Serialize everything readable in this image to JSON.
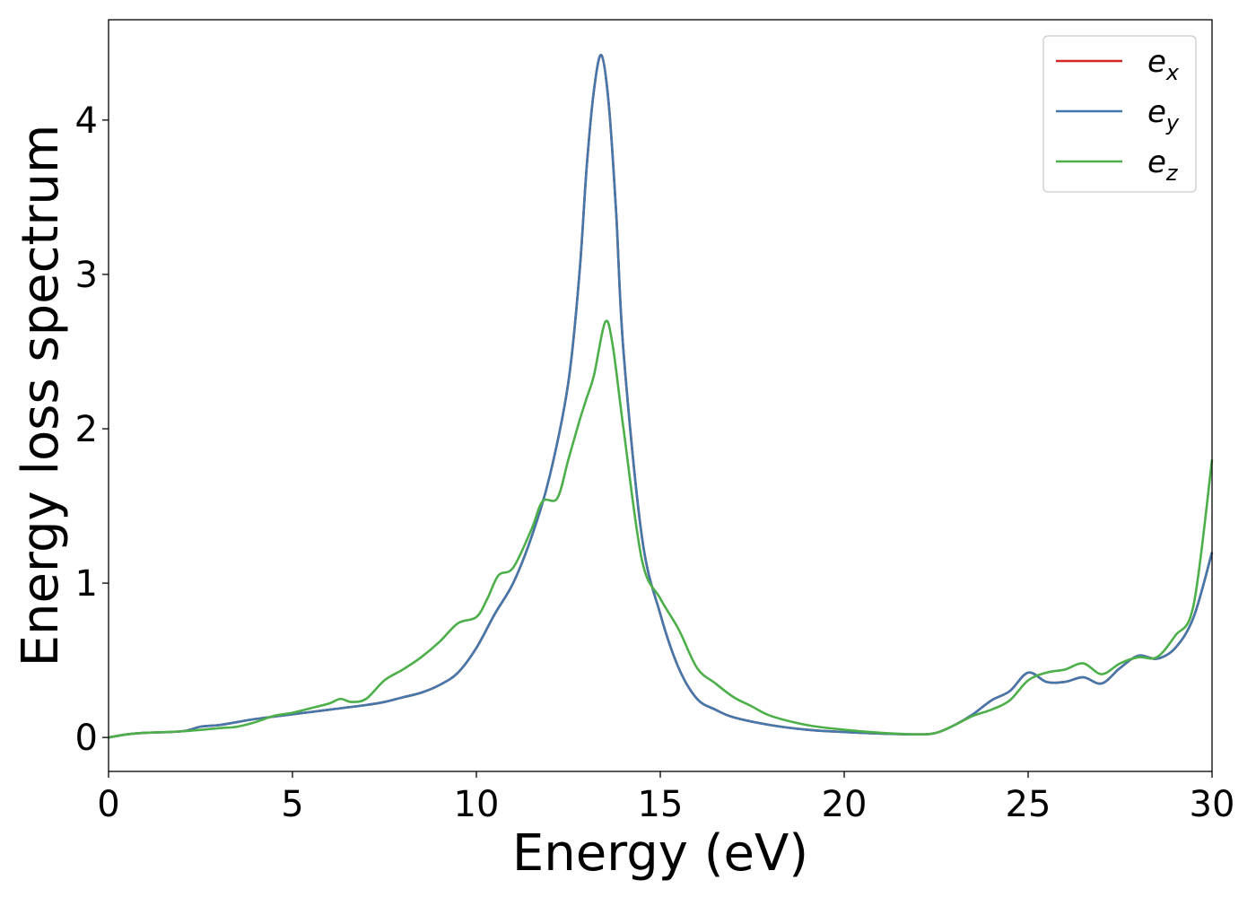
{
  "chart_data": {
    "type": "line",
    "xlabel": "Energy (eV)",
    "ylabel": "Energy loss spectrum",
    "xlim": [
      0,
      30
    ],
    "ylim": [
      -0.22,
      4.65
    ],
    "xticks": [
      0,
      5,
      10,
      15,
      20,
      25,
      30
    ],
    "yticks": [
      0,
      1,
      2,
      3,
      4
    ],
    "grid": false,
    "legend_position": "top-right",
    "series": [
      {
        "name": "e_x",
        "legend_base": "e",
        "legend_sub": "x",
        "color": "#d62728",
        "x": [
          0,
          0.5,
          1,
          2,
          2.5,
          3,
          3.5,
          4,
          5,
          6,
          7,
          7.5,
          8,
          8.5,
          9,
          9.5,
          10,
          10.5,
          11,
          11.5,
          12,
          12.5,
          12.8,
          13,
          13.2,
          13.4,
          13.6,
          13.8,
          14,
          14.5,
          15,
          15.5,
          16,
          16.5,
          17,
          18,
          19,
          20,
          21,
          22,
          22.5,
          23,
          23.5,
          24,
          24.5,
          25,
          25.5,
          26,
          26.5,
          27,
          27.5,
          28,
          28.5,
          29,
          29.5,
          30
        ],
        "y": [
          0,
          0.02,
          0.03,
          0.04,
          0.07,
          0.08,
          0.1,
          0.12,
          0.15,
          0.18,
          0.21,
          0.23,
          0.26,
          0.29,
          0.34,
          0.42,
          0.58,
          0.8,
          1.0,
          1.3,
          1.7,
          2.3,
          3.0,
          3.7,
          4.2,
          4.42,
          4.1,
          3.4,
          2.5,
          1.3,
          0.8,
          0.45,
          0.25,
          0.18,
          0.13,
          0.08,
          0.05,
          0.035,
          0.025,
          0.02,
          0.03,
          0.08,
          0.15,
          0.24,
          0.3,
          0.42,
          0.36,
          0.36,
          0.39,
          0.35,
          0.45,
          0.53,
          0.51,
          0.58,
          0.78,
          1.2
        ]
      },
      {
        "name": "e_y",
        "legend_base": "e",
        "legend_sub": "y",
        "color": "#4477aa",
        "x": [
          0,
          0.5,
          1,
          2,
          2.5,
          3,
          3.5,
          4,
          5,
          6,
          7,
          7.5,
          8,
          8.5,
          9,
          9.5,
          10,
          10.5,
          11,
          11.5,
          12,
          12.5,
          12.8,
          13,
          13.2,
          13.4,
          13.6,
          13.8,
          14,
          14.5,
          15,
          15.5,
          16,
          16.5,
          17,
          18,
          19,
          20,
          21,
          22,
          22.5,
          23,
          23.5,
          24,
          24.5,
          25,
          25.5,
          26,
          26.5,
          27,
          27.5,
          28,
          28.5,
          29,
          29.5,
          30
        ],
        "y": [
          0,
          0.02,
          0.03,
          0.04,
          0.07,
          0.08,
          0.1,
          0.12,
          0.15,
          0.18,
          0.21,
          0.23,
          0.26,
          0.29,
          0.34,
          0.42,
          0.58,
          0.8,
          1.0,
          1.3,
          1.7,
          2.3,
          3.0,
          3.7,
          4.2,
          4.42,
          4.1,
          3.4,
          2.5,
          1.3,
          0.8,
          0.45,
          0.25,
          0.18,
          0.13,
          0.08,
          0.05,
          0.035,
          0.025,
          0.02,
          0.03,
          0.08,
          0.15,
          0.24,
          0.3,
          0.42,
          0.36,
          0.36,
          0.39,
          0.35,
          0.45,
          0.53,
          0.51,
          0.58,
          0.78,
          1.2
        ]
      },
      {
        "name": "e_z",
        "legend_base": "e",
        "legend_sub": "z",
        "color": "#4daf4a",
        "x": [
          0,
          0.5,
          1,
          2,
          3,
          3.5,
          4,
          4.5,
          5,
          5.5,
          6,
          6.3,
          6.6,
          7,
          7.5,
          8,
          8.5,
          9,
          9.5,
          10,
          10.3,
          10.6,
          11,
          11.5,
          11.8,
          12.2,
          12.5,
          12.8,
          13,
          13.2,
          13.5,
          13.7,
          14,
          14.5,
          15,
          15.5,
          16,
          16.5,
          17,
          17.5,
          18,
          19,
          20,
          21,
          22,
          22.5,
          23,
          23.5,
          24,
          24.5,
          25,
          25.5,
          26,
          26.5,
          27,
          27.5,
          28,
          28.5,
          29,
          29.5,
          30
        ],
        "y": [
          0,
          0.02,
          0.03,
          0.04,
          0.06,
          0.07,
          0.1,
          0.14,
          0.16,
          0.19,
          0.22,
          0.25,
          0.23,
          0.25,
          0.37,
          0.44,
          0.52,
          0.62,
          0.74,
          0.78,
          0.9,
          1.05,
          1.1,
          1.35,
          1.53,
          1.55,
          1.8,
          2.05,
          2.2,
          2.35,
          2.69,
          2.55,
          2.0,
          1.15,
          0.9,
          0.7,
          0.45,
          0.35,
          0.26,
          0.2,
          0.14,
          0.08,
          0.05,
          0.03,
          0.02,
          0.03,
          0.08,
          0.14,
          0.18,
          0.24,
          0.37,
          0.42,
          0.44,
          0.48,
          0.41,
          0.48,
          0.52,
          0.52,
          0.66,
          0.86,
          1.8
        ]
      }
    ]
  }
}
